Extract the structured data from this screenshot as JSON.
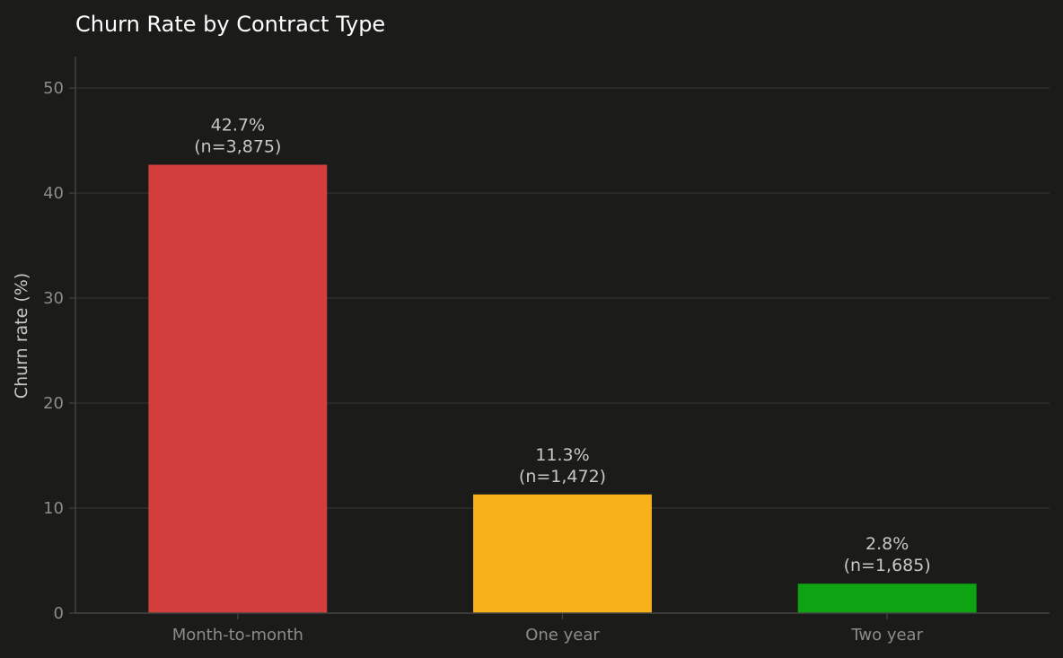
{
  "chart_data": {
    "type": "bar",
    "title": "Churn Rate by Contract Type",
    "xlabel": "",
    "ylabel": "Churn rate (%)",
    "categories": [
      "Month-to-month",
      "One year",
      "Two year"
    ],
    "values": [
      42.7,
      11.3,
      2.8
    ],
    "data_labels": [
      [
        "42.7%",
        "(n=3,875)"
      ],
      [
        "11.3%",
        "(n=1,472)"
      ],
      [
        "2.8%",
        "(n=1,685)"
      ]
    ],
    "colors": [
      "#d23e3c",
      "#f9b11b",
      "#0ea312"
    ],
    "ylim": [
      0,
      53
    ],
    "yticks": [
      0,
      10,
      20,
      30,
      40,
      50
    ],
    "grid": true,
    "background": "#1b1b1a",
    "grid_color": "#333332",
    "axis_color": "#444443"
  }
}
